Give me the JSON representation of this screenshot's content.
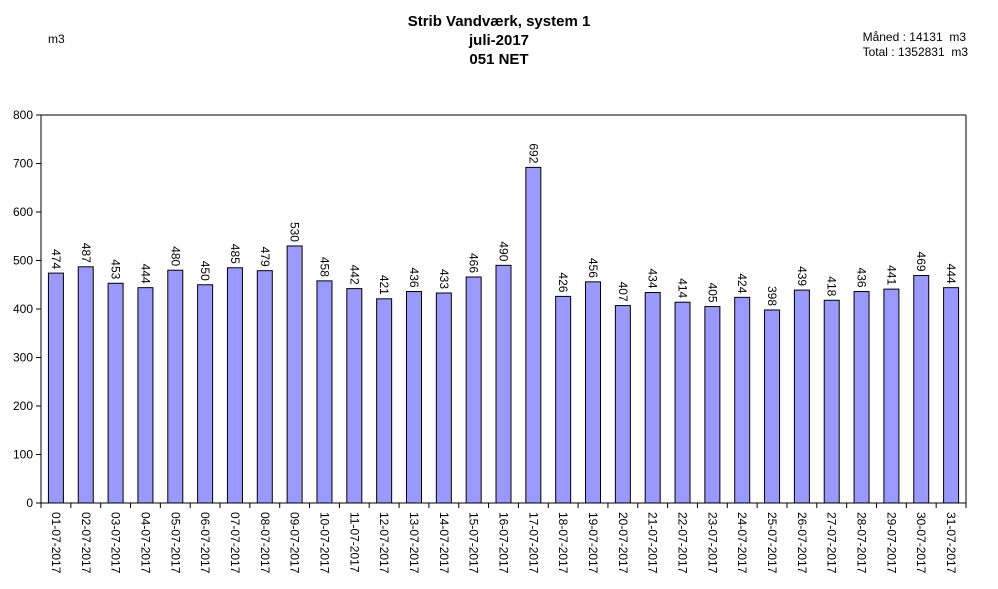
{
  "header": {
    "title_line1": "Strib Vandværk, system 1",
    "title_line2": "juli-2017",
    "title_line3": "051 NET",
    "unit": "m3",
    "month_label": "Måned :",
    "month_value": "14131",
    "month_unit": "m3",
    "total_label": "Total :",
    "total_value": "1352831",
    "total_unit": "m3"
  },
  "colors": {
    "bar_fill": "#9999ff",
    "bar_stroke": "#000000",
    "axis": "#000000"
  },
  "chart_data": {
    "type": "bar",
    "title": "Strib Vandværk, system 1",
    "ylabel": "m3",
    "xlabel": "",
    "ylim": [
      0,
      800
    ],
    "yticks": [
      0,
      100,
      200,
      300,
      400,
      500,
      600,
      700,
      800
    ],
    "grid": false,
    "data_labels": true,
    "categories": [
      "01-07-2017",
      "02-07-2017",
      "03-07-2017",
      "04-07-2017",
      "05-07-2017",
      "06-07-2017",
      "07-07-2017",
      "08-07-2017",
      "09-07-2017",
      "10-07-2017",
      "11-07-2017",
      "12-07-2017",
      "13-07-2017",
      "14-07-2017",
      "15-07-2017",
      "16-07-2017",
      "17-07-2017",
      "18-07-2017",
      "19-07-2017",
      "20-07-2017",
      "21-07-2017",
      "22-07-2017",
      "23-07-2017",
      "24-07-2017",
      "25-07-2017",
      "26-07-2017",
      "27-07-2017",
      "28-07-2017",
      "29-07-2017",
      "30-07-2017",
      "31-07-2017"
    ],
    "values": [
      474,
      487,
      453,
      444,
      480,
      450,
      485,
      479,
      530,
      458,
      442,
      421,
      436,
      433,
      466,
      490,
      692,
      426,
      456,
      407,
      434,
      414,
      405,
      424,
      398,
      439,
      418,
      436,
      441,
      469,
      444
    ]
  }
}
